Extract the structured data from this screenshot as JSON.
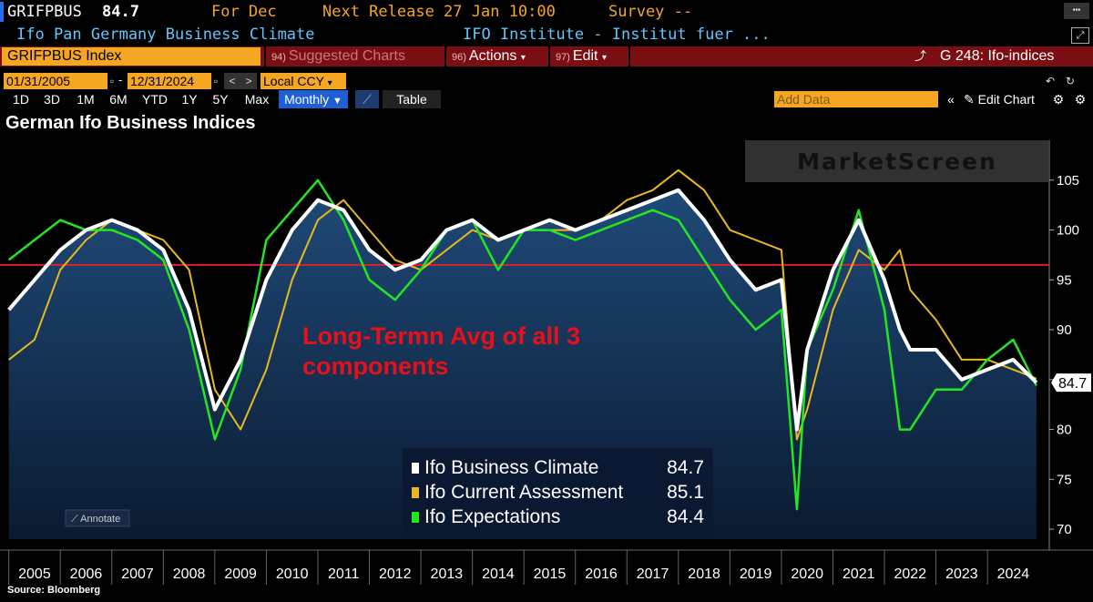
{
  "header": {
    "ticker": "GRIFPBUS",
    "last_value": "84.7",
    "for_label": "For Dec",
    "next_release": "Next Release 27 Jan 10:00",
    "survey": "Survey --",
    "description": "Ifo Pan Germany Business Climate",
    "source_org": "IFO Institute - Institut fuer ..."
  },
  "toolbar": {
    "security": "GRIFPBUS Index",
    "suggested_num": "94)",
    "suggested": "Suggested Charts",
    "actions_num": "96)",
    "actions": "Actions",
    "edit_num": "97)",
    "edit": "Edit",
    "chart_id": "G 248: Ifo-indices",
    "start_date": "01/31/2005",
    "end_date": "12/31/2024",
    "currency": "Local CCY",
    "ranges": [
      "1D",
      "3D",
      "1M",
      "6M",
      "YTD",
      "1Y",
      "5Y",
      "Max"
    ],
    "frequency": "Monthly",
    "table": "Table",
    "add_data": "Add Data",
    "edit_chart": "Edit Chart"
  },
  "title": "German Ifo Business Indices",
  "source": "Source: Bloomberg",
  "colors": {
    "climate": "#ffffff",
    "current": "#e8b820",
    "expectations": "#22e622",
    "avg_line": "#e0202a",
    "annotation": "#e8101a",
    "fill": "#173a60"
  },
  "chart_data": {
    "type": "line",
    "title": "German Ifo Business Indices",
    "watermark": "MarketScreen",
    "annotate_label": "Annotate",
    "x": [
      2005,
      2005.5,
      2006,
      2006.5,
      2007,
      2007.5,
      2008,
      2008.5,
      2009,
      2009.5,
      2010,
      2010.5,
      2011,
      2011.5,
      2012,
      2012.5,
      2013,
      2013.5,
      2014,
      2014.5,
      2015,
      2015.5,
      2016,
      2016.5,
      2017,
      2017.5,
      2018,
      2018.5,
      2019,
      2019.5,
      2020,
      2020.3,
      2020.5,
      2021,
      2021.5,
      2022,
      2022.3,
      2022.5,
      2023,
      2023.5,
      2024,
      2024.5,
      2024.95
    ],
    "xticks": [
      "2005",
      "2006",
      "2007",
      "2008",
      "2009",
      "2010",
      "2011",
      "2012",
      "2013",
      "2014",
      "2015",
      "2016",
      "2017",
      "2018",
      "2019",
      "2020",
      "2021",
      "2022",
      "2023",
      "2024"
    ],
    "ylim": [
      69,
      109
    ],
    "yticks": [
      70,
      75,
      80,
      85,
      90,
      95,
      100,
      105
    ],
    "reference_line": {
      "value": 96.5,
      "label_lines": [
        "Long-Termn Avg of all 3",
        "components"
      ]
    },
    "series": [
      {
        "name": "Ifo Business Climate",
        "last": "84.7",
        "values": [
          92,
          95,
          98,
          100,
          101,
          100,
          98,
          92,
          82,
          87,
          95,
          100,
          103,
          102,
          98,
          96,
          97,
          100,
          101,
          99,
          100,
          101,
          100,
          101,
          102,
          103,
          104,
          101,
          97,
          94,
          95,
          80,
          88,
          96,
          101,
          95,
          90,
          88,
          88,
          85,
          86,
          87,
          84.7
        ]
      },
      {
        "name": "Ifo Current Assessment",
        "last": "85.1",
        "values": [
          87,
          89,
          96,
          99,
          101,
          100,
          99,
          96,
          84,
          80,
          86,
          95,
          101,
          103,
          100,
          97,
          96,
          98,
          100,
          99,
          100,
          100,
          100,
          101,
          103,
          104,
          106,
          104,
          100,
          99,
          98,
          79,
          82,
          92,
          98,
          96,
          98,
          94,
          91,
          87,
          87,
          86,
          85.1
        ]
      },
      {
        "name": "Ifo Expectations",
        "last": "84.4",
        "values": [
          97,
          99,
          101,
          100,
          100,
          99,
          97,
          90,
          79,
          86,
          99,
          102,
          105,
          101,
          95,
          93,
          96,
          100,
          101,
          96,
          100,
          100,
          99,
          100,
          101,
          102,
          101,
          97,
          93,
          90,
          92,
          72,
          88,
          94,
          102,
          92,
          80,
          80,
          84,
          84,
          87,
          89,
          84.4
        ]
      }
    ]
  }
}
